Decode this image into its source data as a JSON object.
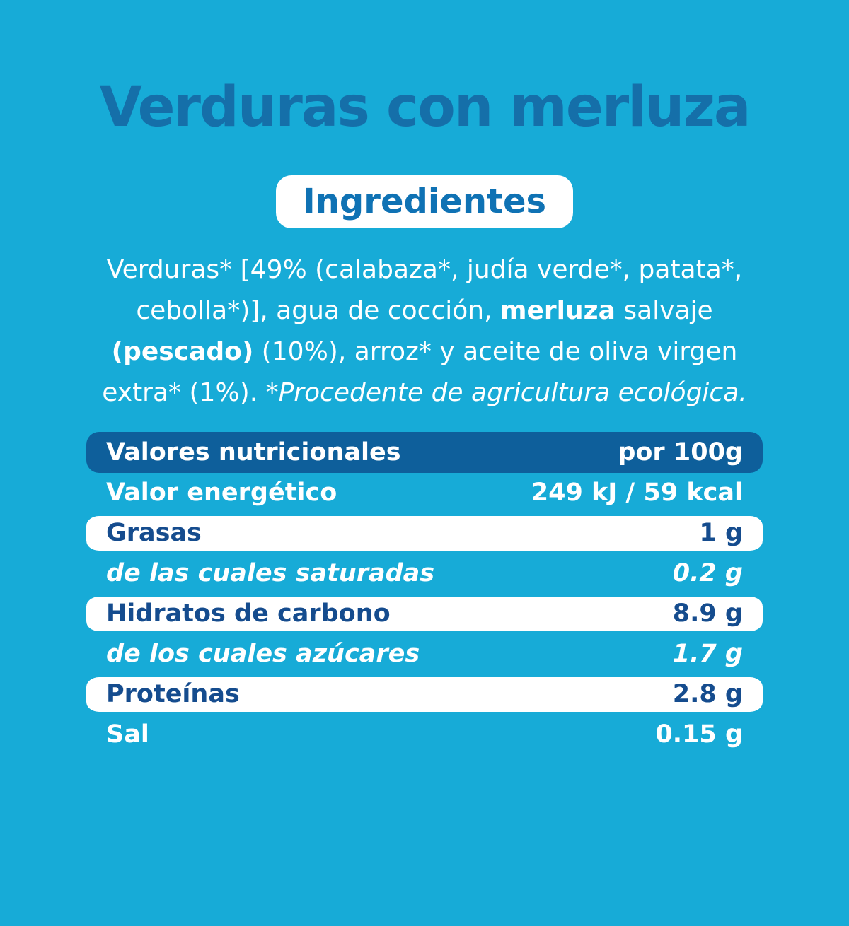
{
  "colors": {
    "background": "#17ABD7",
    "header_bar": "#0E5F9B",
    "title_blue": "#156FA9",
    "badge_text_blue": "#0F72B4",
    "row_navy_text": "#154C8E",
    "white": "#FFFFFF"
  },
  "title": "Verduras con merluza",
  "ingredients": {
    "badge_label": "Ingredientes",
    "lines": [
      [
        {
          "t": "Verduras* [49% (calabaza*, judía verde*, patata*,"
        }
      ],
      [
        {
          "t": "cebolla*)], agua de cocción, "
        },
        {
          "t": "merluza",
          "b": true
        },
        {
          "t": " salvaje"
        }
      ],
      [
        {
          "t": "(pescado)",
          "b": true
        },
        {
          "t": " (10%), arroz* y aceite de oliva virgen"
        }
      ],
      [
        {
          "t": "extra* (1%). "
        },
        {
          "t": "*Procedente de agricultura ecológica.",
          "i": true
        }
      ]
    ]
  },
  "nutrition": {
    "header": {
      "label": "Valores nutricionales",
      "unit": "por 100g"
    },
    "rows": [
      {
        "label": "Valor energético",
        "value": "249 kJ / 59 kcal",
        "style": "plain"
      },
      {
        "label": "Grasas",
        "value": "1 g",
        "style": "white"
      },
      {
        "label": "de las cuales saturadas",
        "value": "0.2 g",
        "style": "plain-italic"
      },
      {
        "label": "Hidratos de carbono",
        "value": "8.9 g",
        "style": "white"
      },
      {
        "label": "de los cuales azúcares",
        "value": "1.7 g",
        "style": "plain-italic"
      },
      {
        "label": "Proteínas",
        "value": "2.8 g",
        "style": "white"
      },
      {
        "label": "Sal",
        "value": "0.15 g",
        "style": "plain"
      }
    ]
  }
}
